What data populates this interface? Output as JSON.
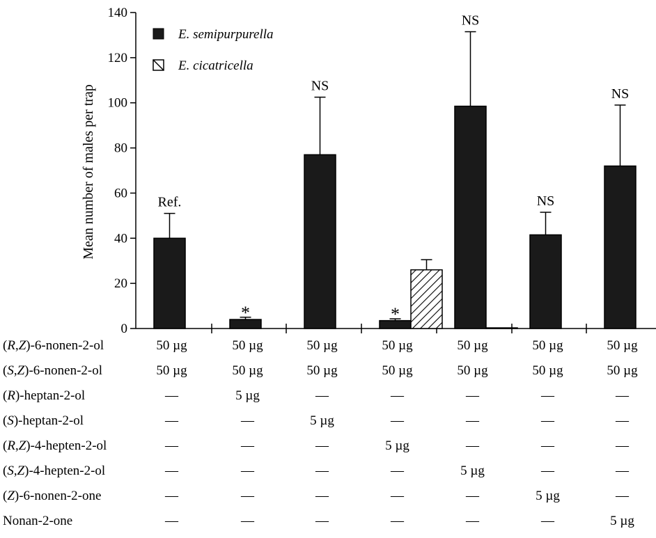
{
  "chart_data": {
    "type": "bar",
    "ylabel": "Mean number of males per trap",
    "ylim": [
      0,
      140
    ],
    "yticks": [
      0,
      20,
      40,
      60,
      80,
      100,
      120,
      140
    ],
    "grid": false,
    "legend_position": "top-left",
    "series": [
      {
        "name": "E. semipurpurella",
        "fill": "#1a1a1a",
        "values": [
          40,
          4,
          77,
          3.5,
          98.5,
          41.5,
          72
        ],
        "error": [
          11,
          1,
          25.5,
          0.8,
          33,
          10,
          27
        ],
        "labels": [
          "Ref.",
          "*",
          "NS",
          "*",
          "NS",
          "NS",
          "NS"
        ]
      },
      {
        "name": "E. cicatricella",
        "fill": "hatch",
        "values": [
          0,
          0,
          0,
          26,
          0.3,
          0,
          0
        ],
        "error": [
          0,
          0,
          0,
          4.5,
          0,
          0,
          0
        ],
        "labels": [
          "",
          "",
          "",
          "",
          "",
          "",
          ""
        ]
      }
    ],
    "treatment_table": {
      "rows": [
        {
          "name": [
            {
              "t": "("
            },
            {
              "t": "R",
              "i": true
            },
            {
              "t": ","
            },
            {
              "t": "Z",
              "i": true
            },
            {
              "t": ")-6-nonen-2-ol"
            }
          ],
          "cells": [
            "50 µg",
            "50 µg",
            "50 µg",
            "50 µg",
            "50 µg",
            "50 µg",
            "50 µg"
          ]
        },
        {
          "name": [
            {
              "t": "("
            },
            {
              "t": "S",
              "i": true
            },
            {
              "t": ","
            },
            {
              "t": "Z",
              "i": true
            },
            {
              "t": ")-6-nonen-2-ol"
            }
          ],
          "cells": [
            "50 µg",
            "50 µg",
            "50 µg",
            "50 µg",
            "50 µg",
            "50 µg",
            "50 µg"
          ]
        },
        {
          "name": [
            {
              "t": "("
            },
            {
              "t": "R",
              "i": true
            },
            {
              "t": ")-heptan-2-ol"
            }
          ],
          "cells": [
            "—",
            "5 µg",
            "—",
            "—",
            "—",
            "—",
            "—"
          ]
        },
        {
          "name": [
            {
              "t": "("
            },
            {
              "t": "S",
              "i": true
            },
            {
              "t": ")-heptan-2-ol"
            }
          ],
          "cells": [
            "—",
            "—",
            "5 µg",
            "—",
            "—",
            "—",
            "—"
          ]
        },
        {
          "name": [
            {
              "t": "("
            },
            {
              "t": "R",
              "i": true
            },
            {
              "t": ","
            },
            {
              "t": "Z",
              "i": true
            },
            {
              "t": ")-4-hepten-2-ol"
            }
          ],
          "cells": [
            "—",
            "—",
            "—",
            "5 µg",
            "—",
            "—",
            "—"
          ]
        },
        {
          "name": [
            {
              "t": "("
            },
            {
              "t": "S",
              "i": true
            },
            {
              "t": ","
            },
            {
              "t": "Z",
              "i": true
            },
            {
              "t": ")-4-hepten-2-ol"
            }
          ],
          "cells": [
            "—",
            "—",
            "—",
            "—",
            "5 µg",
            "—",
            "—"
          ]
        },
        {
          "name": [
            {
              "t": "("
            },
            {
              "t": "Z",
              "i": true
            },
            {
              "t": ")-6-nonen-2-one"
            }
          ],
          "cells": [
            "—",
            "—",
            "—",
            "—",
            "—",
            "5 µg",
            "—"
          ]
        },
        {
          "name": [
            {
              "t": "Nonan-2-one"
            }
          ],
          "cells": [
            "—",
            "—",
            "—",
            "—",
            "—",
            "—",
            "5 µg"
          ]
        }
      ]
    }
  }
}
